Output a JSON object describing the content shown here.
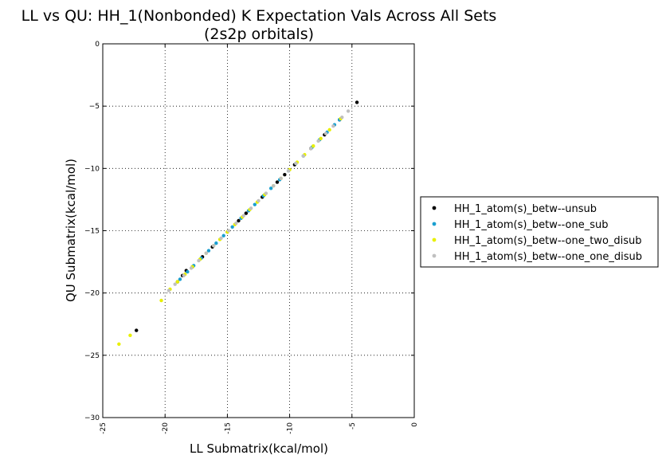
{
  "chart_data": {
    "type": "scatter",
    "title": "LL vs QU: HH_1(Nonbonded) K Expectation Vals Across All Sets",
    "subtitle": "(2s2p orbitals)",
    "xlabel": "LL Submatrix(kcal/mol)",
    "ylabel": "QU Submatrix(kcal/mol)",
    "xlim": [
      -25,
      0
    ],
    "ylim": [
      -30,
      0
    ],
    "xticks": [
      -25,
      -20,
      -15,
      -10,
      -5,
      0
    ],
    "yticks": [
      0,
      -5,
      -10,
      -15,
      -20,
      -25,
      -30
    ],
    "xtick_labels": [
      "-25",
      "-20",
      "-15",
      "-10",
      "-5",
      "0"
    ],
    "ytick_labels": [
      "0",
      "−5",
      "−10",
      "−15",
      "−20",
      "−25",
      "−30"
    ],
    "grid": true,
    "legend_position": "right, outside plot",
    "series": [
      {
        "name": "HH_1_atom(s)_betw--unsub",
        "color": "#000000",
        "x": [
          -4.6,
          -6.0,
          -7.2,
          -8.3,
          -9.6,
          -10.4,
          -11.0,
          -12.2,
          -13.5,
          -14.1,
          -15.0,
          -16.2,
          -17.0,
          -17.8,
          -18.3,
          -18.6,
          -19.0,
          -22.3
        ],
        "y": [
          -4.7,
          -6.1,
          -7.3,
          -8.4,
          -9.7,
          -10.5,
          -11.1,
          -12.3,
          -13.6,
          -14.2,
          -15.1,
          -16.3,
          -17.1,
          -17.9,
          -18.2,
          -18.6,
          -19.1,
          -23.0
        ]
      },
      {
        "name": "HH_1_atom(s)_betw--one_sub",
        "color": "#1a9fd0",
        "x": [
          -6.0,
          -6.4,
          -7.0,
          -7.6,
          -8.2,
          -8.9,
          -9.5,
          -10.1,
          -10.8,
          -11.5,
          -12.1,
          -12.8,
          -13.3,
          -13.9,
          -14.6,
          -15.3,
          -15.9,
          -16.5,
          -17.1,
          -17.7,
          -18.2,
          -18.8
        ],
        "y": [
          -6.1,
          -6.5,
          -7.1,
          -7.7,
          -8.3,
          -9.0,
          -9.6,
          -10.2,
          -10.9,
          -11.6,
          -12.2,
          -12.9,
          -13.4,
          -14.0,
          -14.7,
          -15.4,
          -16.0,
          -16.6,
          -17.2,
          -17.8,
          -18.3,
          -18.9
        ]
      },
      {
        "name": "HH_1_atom(s)_betw--one_two_disub",
        "color": "#e8f000",
        "x": [
          -5.9,
          -6.8,
          -7.5,
          -8.1,
          -8.8,
          -9.4,
          -10.0,
          -10.7,
          -11.3,
          -12.0,
          -12.6,
          -13.2,
          -13.8,
          -14.4,
          -15.0,
          -15.6,
          -16.1,
          -16.7,
          -17.2,
          -17.8,
          -18.4,
          -19.0,
          -19.6,
          -20.3,
          -22.8,
          -23.7
        ],
        "y": [
          -6.0,
          -6.9,
          -7.6,
          -8.2,
          -8.9,
          -9.5,
          -10.1,
          -10.8,
          -11.4,
          -12.1,
          -12.7,
          -13.3,
          -13.9,
          -14.5,
          -15.1,
          -15.7,
          -16.2,
          -16.8,
          -17.3,
          -17.9,
          -18.5,
          -19.1,
          -19.7,
          -20.6,
          -23.4,
          -24.1
        ]
      },
      {
        "name": "HH_1_atom(s)_betw--one_one_disub",
        "color": "#c0c0c0",
        "x": [
          -5.3,
          -5.8,
          -6.5,
          -7.1,
          -7.7,
          -8.3,
          -8.9,
          -9.5,
          -10.1,
          -10.7,
          -11.3,
          -11.9,
          -12.5,
          -13.1,
          -13.7,
          -14.3,
          -14.9,
          -15.5,
          -16.1,
          -16.7,
          -17.3,
          -17.9,
          -18.5,
          -19.2,
          -19.7
        ],
        "y": [
          -5.4,
          -5.9,
          -6.6,
          -7.2,
          -7.8,
          -8.4,
          -9.0,
          -9.6,
          -10.2,
          -10.8,
          -11.4,
          -12.0,
          -12.6,
          -13.2,
          -13.8,
          -14.4,
          -15.0,
          -15.6,
          -16.2,
          -16.8,
          -17.4,
          -18.0,
          -18.6,
          -19.3,
          -19.8
        ]
      }
    ]
  }
}
